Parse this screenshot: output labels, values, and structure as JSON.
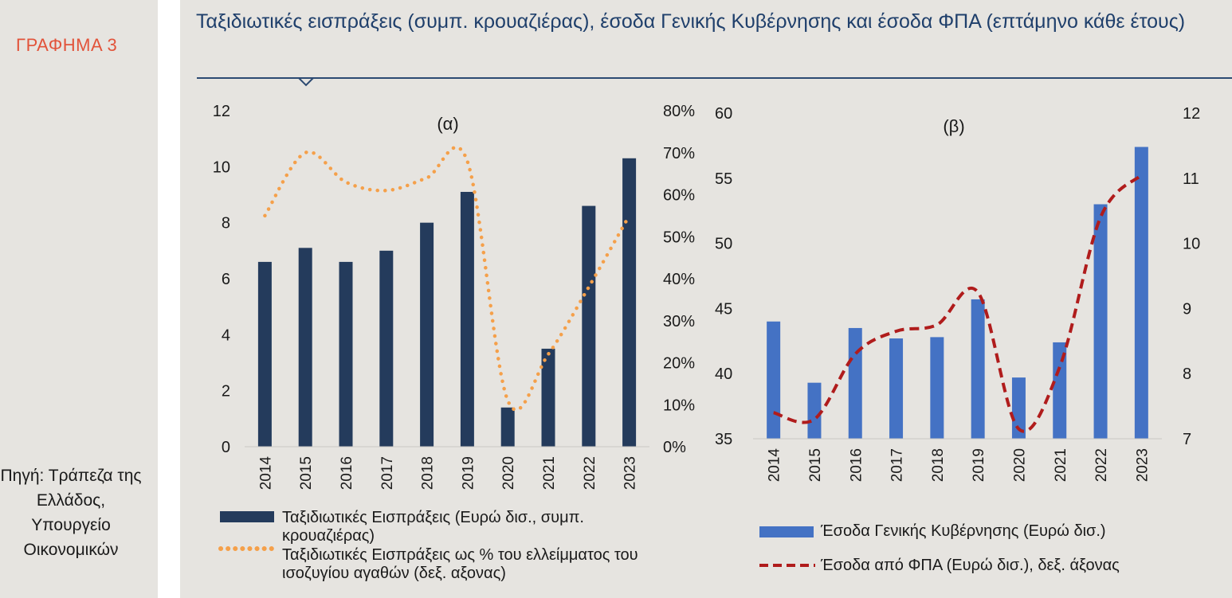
{
  "sidebar": {
    "label": "ΓΡΑΦΗΜΑ 3",
    "source": "Πηγή: Τράπεζα της Ελλάδος, Υπουργείο Οικονομικών"
  },
  "title": "Ταξιδιωτικές εισπράξεις (συμπ. κρουαζιέρας), έσοδα Γενικής Κυβέρνησης και έσοδα ΦΠΑ (επτάμηνο κάθε έτους)",
  "colors": {
    "navy": "#243b5c",
    "orange": "#f5a04a",
    "blue": "#4472c4",
    "red": "#b01c1c",
    "accent_label": "#e2533a",
    "title": "#1f3f6b"
  },
  "chart_data": [
    {
      "type": "bar",
      "subtitle": "(α)",
      "categories": [
        "2014",
        "2015",
        "2016",
        "2017",
        "2018",
        "2019",
        "2020",
        "2021",
        "2022",
        "2023"
      ],
      "series": [
        {
          "name": "Ταξιδιωτικές Εισπράξεις (Ευρώ δισ., συμπ. κρουαζιέρας)",
          "kind": "bar",
          "axis": "left",
          "values": [
            6.6,
            7.1,
            6.6,
            7.0,
            8.0,
            9.1,
            1.4,
            3.5,
            8.6,
            10.3
          ]
        },
        {
          "name": "Ταξιδιωτικές Εισπράξεις ως % του ελλείμματος του ισοζυγίου αγαθών (δεξ. αξονας)",
          "kind": "line-dotted",
          "axis": "right",
          "values": [
            55,
            70,
            63,
            61,
            64,
            68,
            11,
            22,
            38,
            55
          ]
        }
      ],
      "left_axis": {
        "min": 0,
        "max": 12,
        "ticks": [
          "0",
          "2",
          "4",
          "6",
          "8",
          "10",
          "12"
        ]
      },
      "right_axis": {
        "min": 0,
        "max": 80,
        "ticks": [
          "0%",
          "10%",
          "20%",
          "30%",
          "40%",
          "50%",
          "60%",
          "70%",
          "80%"
        ]
      }
    },
    {
      "type": "bar",
      "subtitle": "(β)",
      "categories": [
        "2014",
        "2015",
        "2016",
        "2017",
        "2018",
        "2019",
        "2020",
        "2021",
        "2022",
        "2023"
      ],
      "series": [
        {
          "name": "Έσοδα Γενικής Κυβέρνησης (Ευρώ δισ.)",
          "kind": "bar",
          "axis": "left",
          "values": [
            44.0,
            39.3,
            43.5,
            42.7,
            42.8,
            45.7,
            39.7,
            42.4,
            53.0,
            57.4
          ]
        },
        {
          "name": "Έσοδα από ΦΠΑ (Ευρώ δισ.), δεξ. άξονας",
          "kind": "line-dashed",
          "axis": "right",
          "values": [
            7.4,
            7.3,
            8.3,
            8.65,
            8.75,
            9.25,
            7.15,
            8.1,
            10.4,
            11.05
          ]
        }
      ],
      "left_axis": {
        "min": 35,
        "max": 60,
        "ticks": [
          "35",
          "40",
          "45",
          "50",
          "55",
          "60"
        ]
      },
      "right_axis": {
        "min": 7,
        "max": 12,
        "ticks": [
          "7",
          "8",
          "9",
          "10",
          "11",
          "12"
        ]
      }
    }
  ]
}
